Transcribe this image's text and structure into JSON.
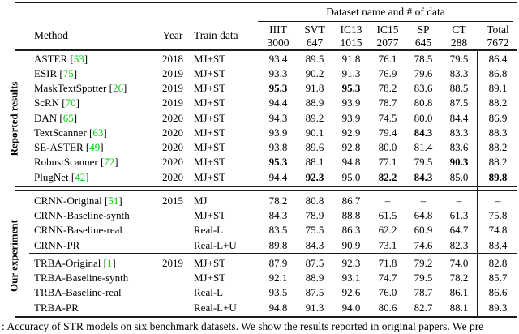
{
  "colors": {
    "citation_green": "#00CE00",
    "text": "#000000",
    "rule": "#1c1c1c"
  },
  "header": {
    "group_title": "Dataset name and # of data",
    "method_label": "Method",
    "year_label": "Year",
    "train_label": "Train data",
    "datasets": [
      {
        "name": "IIIT",
        "count": "3000"
      },
      {
        "name": "SVT",
        "count": "647"
      },
      {
        "name": "IC13",
        "count": "1015"
      },
      {
        "name": "IC15",
        "count": "2077"
      },
      {
        "name": "SP",
        "count": "645"
      },
      {
        "name": "CT",
        "count": "288"
      },
      {
        "name": "Total",
        "count": "7672"
      }
    ]
  },
  "sections": [
    {
      "label": "Reported results",
      "groups": [
        [
          {
            "method": "ASTER",
            "cite": "53",
            "year": "2018",
            "train": "MJ+ST",
            "values": [
              "93.4",
              "89.5",
              "91.8",
              "76.1",
              "78.5",
              "79.5",
              "86.4"
            ],
            "bold": []
          },
          {
            "method": "ESIR",
            "cite": "75",
            "year": "2019",
            "train": "MJ+ST",
            "values": [
              "93.3",
              "90.2",
              "91.3",
              "76.9",
              "79.6",
              "83.3",
              "86.8"
            ],
            "bold": []
          },
          {
            "method": "MaskTextSpotter",
            "cite": "26",
            "year": "2019",
            "train": "MJ+ST",
            "values": [
              "95.3",
              "91.8",
              "95.3",
              "78.2",
              "83.6",
              "88.5",
              "89.1"
            ],
            "bold": [
              0,
              2
            ]
          },
          {
            "method": "ScRN",
            "cite": "70",
            "year": "2019",
            "train": "MJ+ST",
            "values": [
              "94.4",
              "88.9",
              "93.9",
              "78.7",
              "80.8",
              "87.5",
              "88.2"
            ],
            "bold": []
          },
          {
            "method": "DAN",
            "cite": "65",
            "year": "2020",
            "train": "MJ+ST",
            "values": [
              "94.3",
              "89.2",
              "93.9",
              "74.5",
              "80.0",
              "84.4",
              "86.9"
            ],
            "bold": []
          },
          {
            "method": "TextScanner",
            "cite": "63",
            "year": "2020",
            "train": "MJ+ST",
            "values": [
              "93.9",
              "90.1",
              "92.9",
              "79.4",
              "84.3",
              "83.3",
              "88.3"
            ],
            "bold": [
              4
            ]
          },
          {
            "method": "SE-ASTER",
            "cite": "49",
            "year": "2020",
            "train": "MJ+ST",
            "values": [
              "93.8",
              "89.6",
              "92.8",
              "80.0",
              "81.4",
              "83.6",
              "88.2"
            ],
            "bold": []
          },
          {
            "method": "RobustScanner",
            "cite": "72",
            "year": "2020",
            "train": "MJ+ST",
            "values": [
              "95.3",
              "88.1",
              "94.8",
              "77.1",
              "79.5",
              "90.3",
              "88.2"
            ],
            "bold": [
              0,
              5
            ]
          },
          {
            "method": "PlugNet",
            "cite": "42",
            "year": "2020",
            "train": "MJ+ST",
            "values": [
              "94.4",
              "92.3",
              "95.0",
              "82.2",
              "84.3",
              "85.0",
              "89.8"
            ],
            "bold": [
              1,
              3,
              4,
              6
            ]
          }
        ]
      ]
    },
    {
      "label": "Our experiment",
      "groups": [
        [
          {
            "method": "CRNN-Original",
            "cite": "51",
            "year": "2015",
            "train": "MJ",
            "values": [
              "78.2",
              "80.8",
              "86.7",
              "–",
              "–",
              "–",
              "–"
            ],
            "bold": []
          },
          {
            "method": "CRNN-Baseline-synth",
            "cite": "",
            "year": "",
            "train": "MJ+ST",
            "values": [
              "84.3",
              "78.9",
              "88.8",
              "61.5",
              "64.8",
              "61.3",
              "75.8"
            ],
            "bold": []
          },
          {
            "method": "CRNN-Baseline-real",
            "cite": "",
            "year": "",
            "train": "Real-L",
            "values": [
              "83.5",
              "75.5",
              "86.3",
              "62.2",
              "60.9",
              "64.7",
              "74.8"
            ],
            "bold": []
          },
          {
            "method": "CRNN-PR",
            "cite": "",
            "year": "",
            "train": "Real-L+U",
            "values": [
              "89.8",
              "84.3",
              "90.9",
              "73.1",
              "74.6",
              "82.3",
              "83.4"
            ],
            "bold": []
          }
        ],
        [
          {
            "method": "TRBA-Original",
            "cite": "1",
            "year": "2019",
            "train": "MJ+ST",
            "values": [
              "87.9",
              "87.5",
              "92.3",
              "71.8",
              "79.2",
              "74.0",
              "82.8"
            ],
            "bold": []
          },
          {
            "method": "TRBA-Baseline-synth",
            "cite": "",
            "year": "",
            "train": "MJ+ST",
            "values": [
              "92.1",
              "88.9",
              "93.1",
              "74.7",
              "79.5",
              "78.2",
              "85.7"
            ],
            "bold": []
          },
          {
            "method": "TRBA-Baseline-real",
            "cite": "",
            "year": "",
            "train": "Real-L",
            "values": [
              "93.5",
              "87.5",
              "92.6",
              "76.0",
              "78.7",
              "86.1",
              "86.6"
            ],
            "bold": []
          },
          {
            "method": "TRBA-PR",
            "cite": "",
            "year": "",
            "train": "Real-L+U",
            "values": [
              "94.8",
              "91.3",
              "94.0",
              "80.6",
              "82.7",
              "88.1",
              "89.3"
            ],
            "bold": []
          }
        ]
      ]
    }
  ],
  "caption": ": Accuracy of STR models on six benchmark datasets. We show the results reported in original papers. We pre"
}
